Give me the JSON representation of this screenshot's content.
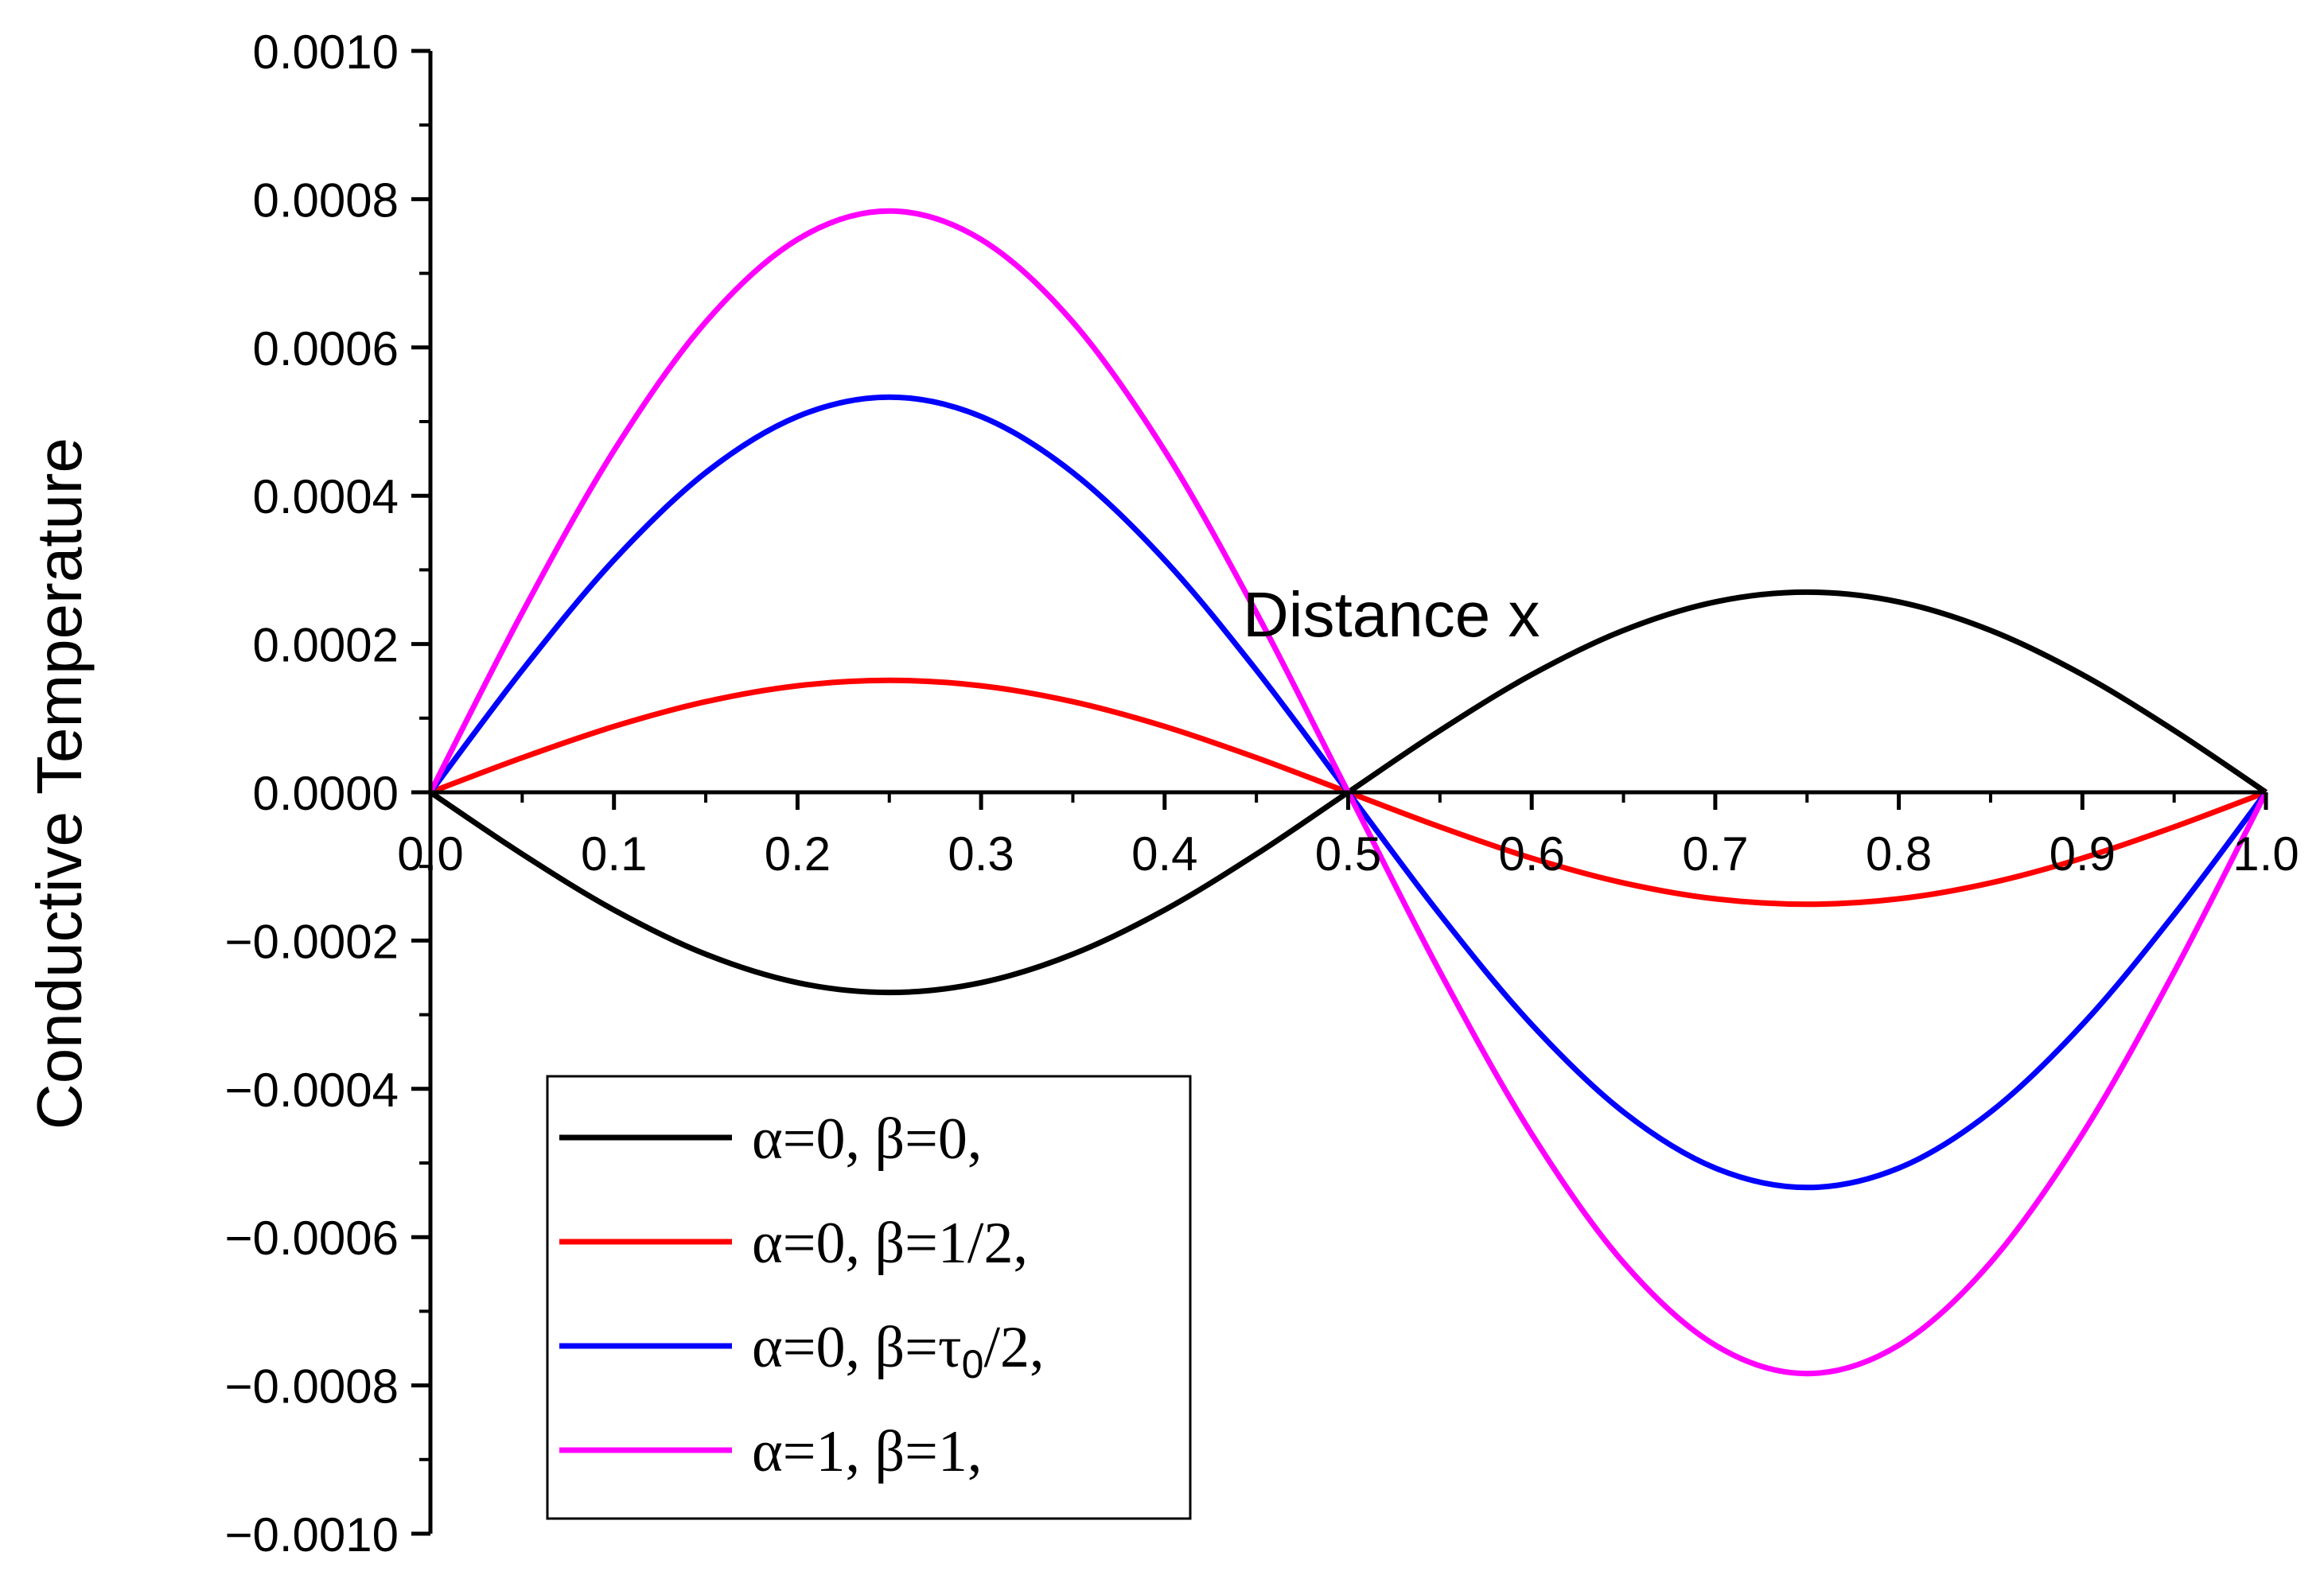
{
  "chart_data": {
    "type": "line",
    "xlabel": "Distance x",
    "ylabel": "Conductive Temperature",
    "xlim": [
      0,
      1.0
    ],
    "ylim": [
      -0.001,
      0.001
    ],
    "grid": false,
    "legend_position": "bottom-left",
    "x_ticks": [
      "0.0",
      "0.1",
      "0.2",
      "0.3",
      "0.4",
      "0.5",
      "0.6",
      "0.7",
      "0.8",
      "0.9",
      "1.0"
    ],
    "y_ticks": [
      "0.0010",
      "0.0008",
      "0.0006",
      "0.0004",
      "0.0002",
      "0.0000",
      "−0.0002",
      "−0.0004",
      "−0.0006",
      "−0.0008",
      "−0.0010"
    ],
    "x": [
      0,
      0.05,
      0.1,
      0.15,
      0.2,
      0.25,
      0.3,
      0.35,
      0.4,
      0.45,
      0.5,
      0.55,
      0.6,
      0.65,
      0.7,
      0.75,
      0.8,
      0.85,
      0.9,
      0.95,
      1.0
    ],
    "series": [
      {
        "name": "α=0, β=0,",
        "color": "#000000",
        "values": [
          0,
          -8.34e-05,
          -0.0001587,
          -0.0002184,
          -0.0002568,
          -0.00027,
          -0.0002568,
          -0.0002184,
          -0.0001587,
          -8.34e-05,
          0,
          8.34e-05,
          0.0001587,
          0.0002184,
          0.0002568,
          0.00027,
          0.0002568,
          0.0002184,
          0.0001587,
          8.34e-05,
          0
        ]
      },
      {
        "name": "α=0, β=1/2,",
        "color": "#ff0000",
        "values": [
          0,
          4.67e-05,
          8.88e-05,
          0.0001222,
          0.0001437,
          0.000151,
          0.0001437,
          0.0001222,
          8.88e-05,
          4.67e-05,
          0,
          -4.67e-05,
          -8.88e-05,
          -0.0001222,
          -0.0001437,
          -0.000151,
          -0.0001437,
          -0.0001222,
          -8.88e-05,
          -4.67e-05,
          0
        ]
      },
      {
        "name_parts": [
          "α=0, β=τ",
          "0",
          "/2,"
        ],
        "color": "#0000ff",
        "values": [
          0,
          0.0001647,
          0.0003133,
          0.0004312,
          0.0005069,
          0.000533,
          0.0005069,
          0.0004312,
          0.0003133,
          0.0001647,
          0,
          -0.0001647,
          -0.0003133,
          -0.0004312,
          -0.0005069,
          -0.000533,
          -0.0005069,
          -0.0004312,
          -0.0003133,
          -0.0001647,
          0
        ]
      },
      {
        "name": "α=1, β=1,",
        "color": "#ff00ff",
        "values": [
          0,
          0.0002423,
          0.0004609,
          0.0006343,
          0.0007457,
          0.000784,
          0.0007457,
          0.0006343,
          0.0004609,
          0.0002423,
          0,
          -0.0002423,
          -0.0004609,
          -0.0006343,
          -0.0007457,
          -0.000784,
          -0.0007457,
          -0.0006343,
          -0.0004609,
          -0.0002423,
          0
        ]
      }
    ]
  }
}
